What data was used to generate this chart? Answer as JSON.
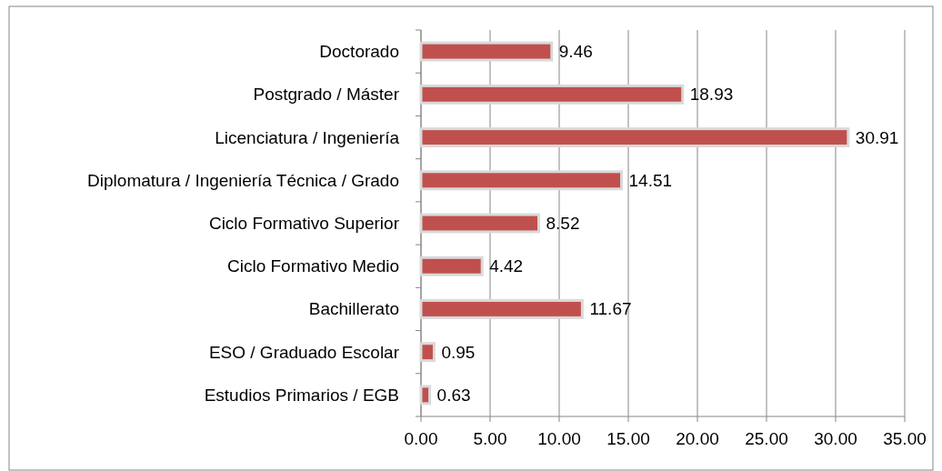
{
  "chart_data": {
    "type": "bar",
    "orientation": "horizontal",
    "categories": [
      "Doctorado",
      "Postgrado / Máster",
      "Licenciatura / Ingeniería",
      "Diplomatura / Ingeniería Técnica / Grado",
      "Ciclo Formativo Superior",
      "Ciclo Formativo Medio",
      "Bachillerato",
      "ESO / Graduado Escolar",
      "Estudios Primarios / EGB"
    ],
    "values": [
      9.46,
      18.93,
      30.91,
      14.51,
      8.52,
      4.42,
      11.67,
      0.95,
      0.63
    ],
    "color": "#c0504d",
    "xlim": [
      0,
      35
    ],
    "xticks": [
      {
        "value": 0,
        "label": "0.00"
      },
      {
        "value": 5,
        "label": "5.00"
      },
      {
        "value": 10,
        "label": "10.00"
      },
      {
        "value": 15,
        "label": "15.00"
      },
      {
        "value": 20,
        "label": "20.00"
      },
      {
        "value": 25,
        "label": "25.00"
      },
      {
        "value": 30,
        "label": "30.00"
      },
      {
        "value": 35,
        "label": "35.00"
      }
    ],
    "grid": "x",
    "data_labels": true
  }
}
